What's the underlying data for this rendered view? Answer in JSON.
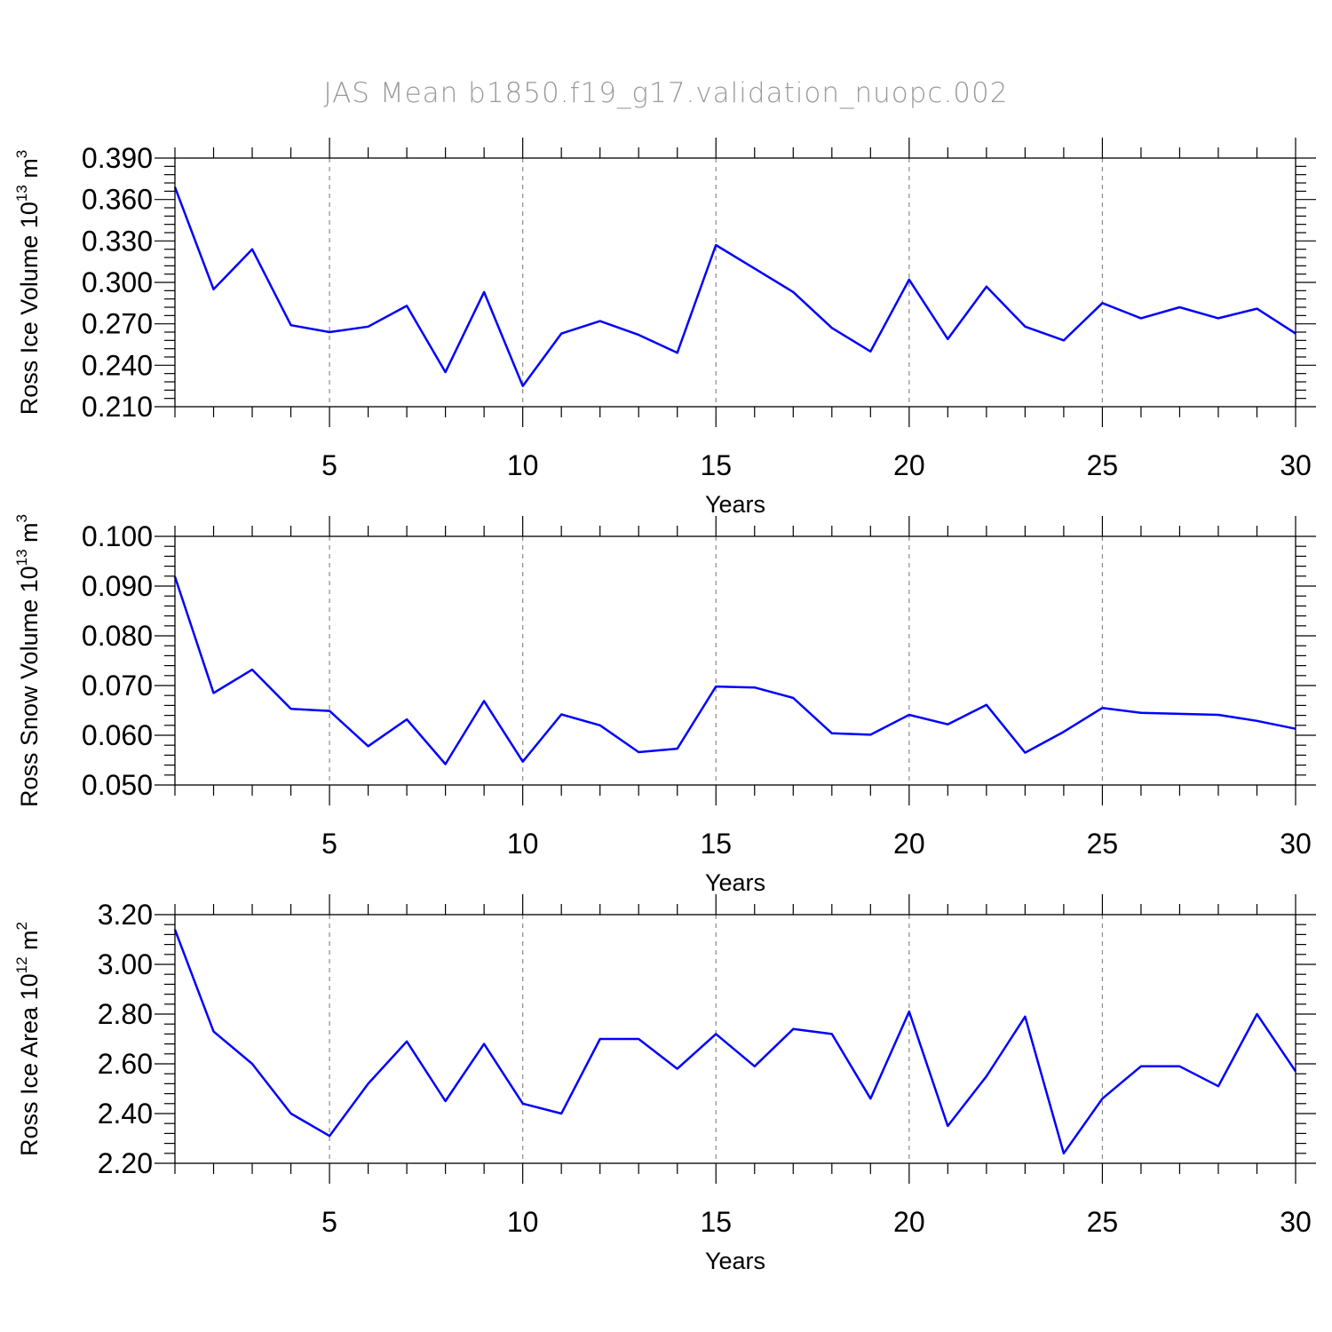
{
  "chart_data": [
    {
      "type": "line",
      "title": "JAS Mean b1850.f19_g17.validation_nuopc.002",
      "xlabel": "Years",
      "ylabel_text": "Ross Ice Volume 10",
      "ylabel_exp": "13",
      "ylabel_unit": " m",
      "ylabel_unit_exp": "3",
      "xlim": [
        1,
        30
      ],
      "ylim": [
        0.21,
        0.39
      ],
      "xticks": [
        5,
        10,
        15,
        20,
        25,
        30
      ],
      "yticks": [
        "0.210",
        "0.240",
        "0.270",
        "0.300",
        "0.330",
        "0.360",
        "0.390"
      ],
      "x": [
        1,
        2,
        3,
        4,
        5,
        6,
        7,
        8,
        9,
        10,
        11,
        12,
        13,
        14,
        15,
        16,
        17,
        18,
        19,
        20,
        21,
        22,
        23,
        24,
        25,
        26,
        27,
        28,
        29,
        30
      ],
      "series": [
        {
          "name": "Ross Ice Volume",
          "color": "#0000ff",
          "values": [
            0.369,
            0.295,
            0.324,
            0.269,
            0.264,
            0.268,
            0.283,
            0.235,
            0.293,
            0.225,
            0.263,
            0.272,
            0.262,
            0.249,
            0.327,
            0.31,
            0.293,
            0.267,
            0.25,
            0.302,
            0.259,
            0.297,
            0.268,
            0.258,
            0.285,
            0.274,
            0.282,
            0.274,
            0.281,
            0.263
          ]
        }
      ]
    },
    {
      "type": "line",
      "xlabel": "Years",
      "ylabel_text": "Ross Snow Volume 10",
      "ylabel_exp": "13",
      "ylabel_unit": " m",
      "ylabel_unit_exp": "3",
      "xlim": [
        1,
        30
      ],
      "ylim": [
        0.05,
        0.1
      ],
      "xticks": [
        5,
        10,
        15,
        20,
        25,
        30
      ],
      "yticks": [
        "0.050",
        "0.060",
        "0.070",
        "0.080",
        "0.090",
        "0.100"
      ],
      "x": [
        1,
        2,
        3,
        4,
        5,
        6,
        7,
        8,
        9,
        10,
        11,
        12,
        13,
        14,
        15,
        16,
        17,
        18,
        19,
        20,
        21,
        22,
        23,
        24,
        25,
        26,
        27,
        28,
        29,
        30
      ],
      "series": [
        {
          "name": "Ross Snow Volume",
          "color": "#0000ff",
          "values": [
            0.0919,
            0.0685,
            0.0732,
            0.0653,
            0.0649,
            0.0578,
            0.0632,
            0.0542,
            0.0669,
            0.0547,
            0.0642,
            0.062,
            0.0566,
            0.0573,
            0.0698,
            0.0696,
            0.0675,
            0.0604,
            0.0601,
            0.0641,
            0.0622,
            0.0661,
            0.0565,
            0.0607,
            0.0655,
            0.0645,
            0.0643,
            0.0641,
            0.0629,
            0.0613
          ]
        }
      ]
    },
    {
      "type": "line",
      "xlabel": "Years",
      "ylabel_text": "Ross Ice Area 10",
      "ylabel_exp": "12",
      "ylabel_unit": " m",
      "ylabel_unit_exp": "2",
      "xlim": [
        1,
        30
      ],
      "ylim": [
        2.2,
        3.2
      ],
      "xticks": [
        5,
        10,
        15,
        20,
        25,
        30
      ],
      "yticks": [
        "2.20",
        "2.40",
        "2.60",
        "2.80",
        "3.00",
        "3.20"
      ],
      "x": [
        1,
        2,
        3,
        4,
        5,
        6,
        7,
        8,
        9,
        10,
        11,
        12,
        13,
        14,
        15,
        16,
        17,
        18,
        19,
        20,
        21,
        22,
        23,
        24,
        25,
        26,
        27,
        28,
        29,
        30
      ],
      "series": [
        {
          "name": "Ross Ice Area",
          "color": "#0000ff",
          "values": [
            3.14,
            2.73,
            2.6,
            2.4,
            2.31,
            2.52,
            2.69,
            2.45,
            2.68,
            2.44,
            2.4,
            2.7,
            2.7,
            2.58,
            2.72,
            2.59,
            2.74,
            2.72,
            2.46,
            2.81,
            2.35,
            2.55,
            2.79,
            2.24,
            2.46,
            2.59,
            2.59,
            2.51,
            2.8,
            2.57
          ]
        }
      ]
    }
  ]
}
